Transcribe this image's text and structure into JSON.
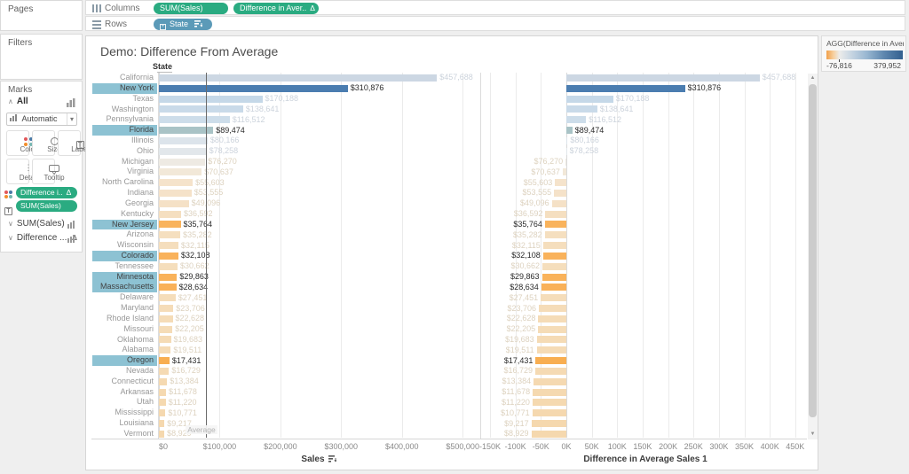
{
  "shelves": {
    "columns_label": "Columns",
    "rows_label": "Rows",
    "columns_pills": [
      {
        "label": "SUM(Sales)"
      },
      {
        "label": "Difference in Aver..",
        "delta": true
      }
    ],
    "rows_pills": [
      {
        "label": "State",
        "sorted": true
      }
    ]
  },
  "delta_glyph": "Δ",
  "sidebar": {
    "pages_label": "Pages",
    "filters_label": "Filters",
    "marks": {
      "label": "Marks",
      "all_label": "All",
      "mark_type": "Automatic",
      "buttons": [
        "Color",
        "Size",
        "Label",
        "Detail",
        "Tooltip"
      ],
      "pills": [
        {
          "label": "Difference i..",
          "delta": true,
          "role": "color"
        },
        {
          "label": "SUM(Sales)",
          "role": "label"
        }
      ],
      "cards": [
        {
          "label": "SUM(Sales)"
        },
        {
          "label": "Difference ...",
          "delta": true
        }
      ]
    }
  },
  "legend": {
    "title": "AGG(Difference in Aver...",
    "min_label": "-76,816",
    "max_label": "379,952",
    "gradient_stops": [
      "#f1a04a 0%",
      "#f7cf9d 9%",
      "#ececea 17%",
      "#cdd9e4 30%",
      "#9ab8d2 52%",
      "#5d86ae 76%",
      "#33608f 100%"
    ]
  },
  "colors": {
    "row_highlight": "#8dc2d3",
    "reference_line": "#6b6b6b",
    "gridline": "#ebebeb",
    "zero_line": "#d9d9d9",
    "selected_text": "#2a2a2a",
    "faded_blue_text": "#ccd3dc",
    "faded_tan_text": "#ddd2bf"
  },
  "chart_data": {
    "type": "bar",
    "title": "Demo: Difference From Average",
    "row_field": "State",
    "average_sales": 77736,
    "average_label": "Average",
    "left_pane": {
      "xlabel": "Sales",
      "xmax": 526000,
      "ticks": [
        {
          "label": "$0",
          "v": 0
        },
        {
          "label": "$100,000",
          "v": 100000
        },
        {
          "label": "$200,000",
          "v": 200000
        },
        {
          "label": "$300,000",
          "v": 300000
        },
        {
          "label": "$400,000",
          "v": 400000
        },
        {
          "label": "$500,000",
          "v": 500000
        }
      ]
    },
    "right_pane": {
      "xlabel": "Difference in Average Sales 1",
      "xmin": -164000,
      "xmax": 473000,
      "ticks": [
        {
          "label": "-150K",
          "v": -150000
        },
        {
          "label": "-100K",
          "v": -100000
        },
        {
          "label": "-50K",
          "v": -50000
        },
        {
          "label": "0K",
          "v": 0
        },
        {
          "label": "50K",
          "v": 50000
        },
        {
          "label": "100K",
          "v": 100000
        },
        {
          "label": "150K",
          "v": 150000
        },
        {
          "label": "200K",
          "v": 200000
        },
        {
          "label": "250K",
          "v": 250000
        },
        {
          "label": "300K",
          "v": 300000
        },
        {
          "label": "350K",
          "v": 350000
        },
        {
          "label": "400K",
          "v": 400000
        },
        {
          "label": "450K",
          "v": 450000
        }
      ]
    },
    "rows": [
      {
        "state": "California",
        "sales": 457688,
        "sales_label": "$457,688",
        "diff": 379952,
        "color": "#ccd7e3",
        "sel": false
      },
      {
        "state": "New York",
        "sales": 310876,
        "sales_label": "$310,876",
        "diff": 233140,
        "color": "#4b7db0",
        "sel": true
      },
      {
        "state": "Texas",
        "sales": 170188,
        "sales_label": "$170,188",
        "diff": 92452,
        "color": "#c5d8e8",
        "sel": false
      },
      {
        "state": "Washington",
        "sales": 138641,
        "sales_label": "$138,641",
        "diff": 60905,
        "color": "#c9dae9",
        "sel": false
      },
      {
        "state": "Pennsylvania",
        "sales": 116512,
        "sales_label": "$116,512",
        "diff": 38776,
        "color": "#cdddea",
        "sel": false
      },
      {
        "state": "Florida",
        "sales": 89474,
        "sales_label": "$89,474",
        "diff": 11738,
        "color": "#a9c3c6",
        "sel": true
      },
      {
        "state": "Illinois",
        "sales": 80166,
        "sales_label": "$80,166",
        "diff": 2430,
        "color": "#dce4eb",
        "sel": false
      },
      {
        "state": "Ohio",
        "sales": 78258,
        "sales_label": "$78,258",
        "diff": 522,
        "color": "#e2e7eb",
        "sel": false
      },
      {
        "state": "Michigan",
        "sales": 76270,
        "sales_label": "$76,270",
        "diff": -1466,
        "color": "#eeeae3",
        "sel": false
      },
      {
        "state": "Virginia",
        "sales": 70637,
        "sales_label": "$70,637",
        "diff": -7099,
        "color": "#f2e8d8",
        "sel": false
      },
      {
        "state": "North Carolina",
        "sales": 55603,
        "sales_label": "$55,603",
        "diff": -22133,
        "color": "#f5e3cb",
        "sel": false
      },
      {
        "state": "Indiana",
        "sales": 53555,
        "sales_label": "$53,555",
        "diff": -24181,
        "color": "#f5e2c9",
        "sel": false
      },
      {
        "state": "Georgia",
        "sales": 49096,
        "sales_label": "$49,096",
        "diff": -28640,
        "color": "#f5e1c6",
        "sel": false
      },
      {
        "state": "Kentucky",
        "sales": 36592,
        "sales_label": "$36,592",
        "diff": -41144,
        "color": "#f5dfc0",
        "sel": false
      },
      {
        "state": "New Jersey",
        "sales": 35764,
        "sales_label": "$35,764",
        "diff": -41972,
        "color": "#f9b35c",
        "sel": true
      },
      {
        "state": "Arizona",
        "sales": 35282,
        "sales_label": "$35,282",
        "diff": -42454,
        "color": "#f5dfbf",
        "sel": false
      },
      {
        "state": "Wisconsin",
        "sales": 32115,
        "sales_label": "$32,115",
        "diff": -45621,
        "color": "#f5debd",
        "sel": false
      },
      {
        "state": "Colorado",
        "sales": 32108,
        "sales_label": "$32,108",
        "diff": -45628,
        "color": "#f9b25b",
        "sel": true
      },
      {
        "state": "Tennessee",
        "sales": 30662,
        "sales_label": "$30,662",
        "diff": -47074,
        "color": "#f5debc",
        "sel": false
      },
      {
        "state": "Minnesota",
        "sales": 29863,
        "sales_label": "$29,863",
        "diff": -47873,
        "color": "#f9b25a",
        "sel": true
      },
      {
        "state": "Massachusetts",
        "sales": 28634,
        "sales_label": "$28,634",
        "diff": -49102,
        "color": "#f9b159",
        "sel": true
      },
      {
        "state": "Delaware",
        "sales": 27451,
        "sales_label": "$27,451",
        "diff": -50285,
        "color": "#f5ddba",
        "sel": false
      },
      {
        "state": "Maryland",
        "sales": 23706,
        "sales_label": "$23,706",
        "diff": -54030,
        "color": "#f5dcb8",
        "sel": false
      },
      {
        "state": "Rhode Island",
        "sales": 22628,
        "sales_label": "$22,628",
        "diff": -55108,
        "color": "#f5dcb7",
        "sel": false
      },
      {
        "state": "Missouri",
        "sales": 22205,
        "sales_label": "$22,205",
        "diff": -55531,
        "color": "#f5dcb7",
        "sel": false
      },
      {
        "state": "Oklahoma",
        "sales": 19683,
        "sales_label": "$19,683",
        "diff": -58053,
        "color": "#f5dbb5",
        "sel": false
      },
      {
        "state": "Alabama",
        "sales": 19511,
        "sales_label": "$19,511",
        "diff": -58225,
        "color": "#f5dbb5",
        "sel": false
      },
      {
        "state": "Oregon",
        "sales": 17431,
        "sales_label": "$17,431",
        "diff": -60305,
        "color": "#f8ae51",
        "sel": true
      },
      {
        "state": "Nevada",
        "sales": 16729,
        "sales_label": "$16,729",
        "diff": -61007,
        "color": "#f5dab3",
        "sel": false
      },
      {
        "state": "Connecticut",
        "sales": 13384,
        "sales_label": "$13,384",
        "diff": -64352,
        "color": "#f5d9b1",
        "sel": false
      },
      {
        "state": "Arkansas",
        "sales": 11678,
        "sales_label": "$11,678",
        "diff": -66058,
        "color": "#f5d9b0",
        "sel": false
      },
      {
        "state": "Utah",
        "sales": 11220,
        "sales_label": "$11,220",
        "diff": -66516,
        "color": "#f5d9b0",
        "sel": false
      },
      {
        "state": "Mississippi",
        "sales": 10771,
        "sales_label": "$10,771",
        "diff": -66965,
        "color": "#f5d8af",
        "sel": false
      },
      {
        "state": "Louisiana",
        "sales": 9217,
        "sales_label": "$9,217",
        "diff": -68519,
        "color": "#f5d8ae",
        "sel": false
      },
      {
        "state": "Vermont",
        "sales": 8929,
        "sales_label": "$8,929",
        "diff": -68807,
        "color": "#f5d8ae",
        "sel": false
      }
    ]
  }
}
